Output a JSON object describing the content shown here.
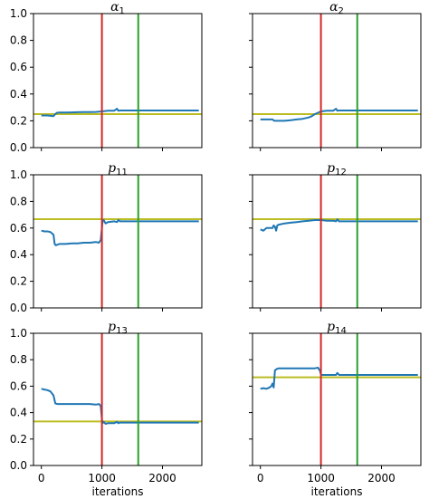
{
  "chart_data": [
    {
      "type": "line",
      "title": "α",
      "title_sub": "1",
      "xlabel": "",
      "ylim": [
        0.0,
        1.0
      ],
      "xlim": [
        -130,
        2650
      ],
      "yticks": [
        "0.0",
        "0.2",
        "0.4",
        "0.6",
        "0.8",
        "1.0"
      ],
      "xticks": [
        "0",
        "1000",
        "2000"
      ],
      "vlines": [
        {
          "x": 1000,
          "color": "#d62728"
        },
        {
          "x": 1600,
          "color": "#2ca02c"
        }
      ],
      "hlines": [
        {
          "y": 0.25,
          "color": "#bcbd22"
        }
      ],
      "series": [
        {
          "color": "#1f77b4",
          "x": [
            0,
            100,
            200,
            220,
            240,
            260,
            300,
            400,
            500,
            600,
            700,
            800,
            900,
            1000,
            1100,
            1200,
            1250,
            1270,
            1300,
            1400,
            1600,
            1800,
            2000,
            2200,
            2400,
            2600
          ],
          "y": [
            0.24,
            0.24,
            0.235,
            0.245,
            0.255,
            0.26,
            0.262,
            0.262,
            0.263,
            0.264,
            0.265,
            0.265,
            0.266,
            0.27,
            0.275,
            0.275,
            0.29,
            0.275,
            0.277,
            0.277,
            0.277,
            0.277,
            0.277,
            0.277,
            0.277,
            0.277
          ]
        }
      ]
    },
    {
      "type": "line",
      "title": "α",
      "title_sub": "2",
      "xlabel": "",
      "ylim": [
        0.0,
        1.0
      ],
      "xlim": [
        -130,
        2650
      ],
      "yticks": [
        "0.0",
        "0.2",
        "0.4",
        "0.6",
        "0.8",
        "1.0"
      ],
      "xticks": [
        "0",
        "1000",
        "2000"
      ],
      "vlines": [
        {
          "x": 1000,
          "color": "#d62728"
        },
        {
          "x": 1600,
          "color": "#2ca02c"
        }
      ],
      "hlines": [
        {
          "y": 0.25,
          "color": "#bcbd22"
        }
      ],
      "series": [
        {
          "color": "#1f77b4",
          "x": [
            0,
            100,
            200,
            230,
            260,
            300,
            400,
            500,
            600,
            700,
            800,
            850,
            900,
            950,
            1000,
            1100,
            1200,
            1250,
            1270,
            1300,
            1400,
            1600,
            1800,
            2000,
            2200,
            2400,
            2600
          ],
          "y": [
            0.21,
            0.21,
            0.21,
            0.2,
            0.2,
            0.2,
            0.2,
            0.205,
            0.21,
            0.215,
            0.225,
            0.235,
            0.25,
            0.26,
            0.27,
            0.275,
            0.275,
            0.29,
            0.275,
            0.277,
            0.277,
            0.277,
            0.277,
            0.277,
            0.277,
            0.277,
            0.277
          ]
        }
      ]
    },
    {
      "type": "line",
      "title": "p",
      "title_sub": "11",
      "xlabel": "",
      "ylim": [
        0.0,
        1.0
      ],
      "xlim": [
        -130,
        2650
      ],
      "yticks": [
        "0.0",
        "0.2",
        "0.4",
        "0.6",
        "0.8",
        "1.0"
      ],
      "xticks": [
        "0",
        "1000",
        "2000"
      ],
      "vlines": [
        {
          "x": 1000,
          "color": "#d62728"
        },
        {
          "x": 1600,
          "color": "#2ca02c"
        }
      ],
      "hlines": [
        {
          "y": 0.667,
          "color": "#bcbd22"
        }
      ],
      "series": [
        {
          "color": "#1f77b4",
          "x": [
            0,
            50,
            100,
            150,
            200,
            220,
            240,
            260,
            300,
            400,
            500,
            600,
            700,
            800,
            900,
            950,
            980,
            1000,
            1010,
            1030,
            1060,
            1100,
            1200,
            1250,
            1270,
            1300,
            1400,
            1600,
            1800,
            2000,
            2200,
            2400,
            2600
          ],
          "y": [
            0.58,
            0.575,
            0.575,
            0.57,
            0.55,
            0.48,
            0.47,
            0.475,
            0.48,
            0.48,
            0.485,
            0.485,
            0.49,
            0.49,
            0.495,
            0.49,
            0.51,
            0.6,
            0.65,
            0.66,
            0.635,
            0.645,
            0.65,
            0.645,
            0.66,
            0.65,
            0.65,
            0.65,
            0.65,
            0.65,
            0.65,
            0.65,
            0.65
          ]
        }
      ]
    },
    {
      "type": "line",
      "title": "p",
      "title_sub": "12",
      "xlabel": "",
      "ylim": [
        0.0,
        1.0
      ],
      "xlim": [
        -130,
        2650
      ],
      "yticks": [
        "0.0",
        "0.2",
        "0.4",
        "0.6",
        "0.8",
        "1.0"
      ],
      "xticks": [
        "0",
        "1000",
        "2000"
      ],
      "vlines": [
        {
          "x": 1000,
          "color": "#d62728"
        },
        {
          "x": 1600,
          "color": "#2ca02c"
        }
      ],
      "hlines": [
        {
          "y": 0.667,
          "color": "#bcbd22"
        }
      ],
      "series": [
        {
          "color": "#1f77b4",
          "x": [
            0,
            50,
            100,
            150,
            200,
            220,
            240,
            260,
            280,
            300,
            400,
            500,
            600,
            700,
            800,
            900,
            1000,
            1100,
            1200,
            1250,
            1270,
            1300,
            1400,
            1600,
            1800,
            2000,
            2200,
            2400,
            2600
          ],
          "y": [
            0.59,
            0.58,
            0.6,
            0.6,
            0.6,
            0.62,
            0.61,
            0.58,
            0.62,
            0.625,
            0.635,
            0.64,
            0.645,
            0.65,
            0.655,
            0.66,
            0.66,
            0.655,
            0.655,
            0.65,
            0.665,
            0.65,
            0.65,
            0.65,
            0.65,
            0.65,
            0.65,
            0.65,
            0.65
          ]
        }
      ]
    },
    {
      "type": "line",
      "title": "p",
      "title_sub": "13",
      "xlabel": "iterations",
      "ylim": [
        0.0,
        1.0
      ],
      "xlim": [
        -130,
        2650
      ],
      "yticks": [
        "0.0",
        "0.2",
        "0.4",
        "0.6",
        "0.8",
        "1.0"
      ],
      "xticks": [
        "0",
        "1000",
        "2000"
      ],
      "vlines": [
        {
          "x": 1000,
          "color": "#d62728"
        },
        {
          "x": 1600,
          "color": "#2ca02c"
        }
      ],
      "hlines": [
        {
          "y": 0.333,
          "color": "#bcbd22"
        }
      ],
      "series": [
        {
          "color": "#1f77b4",
          "x": [
            0,
            50,
            100,
            150,
            200,
            230,
            260,
            300,
            400,
            500,
            600,
            700,
            800,
            900,
            950,
            980,
            1000,
            1010,
            1030,
            1060,
            1100,
            1200,
            1250,
            1270,
            1300,
            1400,
            1600,
            1800,
            2000,
            2200,
            2400,
            2600
          ],
          "y": [
            0.58,
            0.575,
            0.57,
            0.56,
            0.53,
            0.47,
            0.465,
            0.465,
            0.465,
            0.465,
            0.465,
            0.465,
            0.465,
            0.46,
            0.465,
            0.45,
            0.35,
            0.32,
            0.33,
            0.315,
            0.32,
            0.32,
            0.33,
            0.32,
            0.325,
            0.325,
            0.325,
            0.325,
            0.325,
            0.325,
            0.325,
            0.325
          ]
        }
      ]
    },
    {
      "type": "line",
      "title": "p",
      "title_sub": "14",
      "xlabel": "iterations",
      "ylim": [
        0.0,
        1.0
      ],
      "xlim": [
        -130,
        2650
      ],
      "yticks": [
        "0.0",
        "0.2",
        "0.4",
        "0.6",
        "0.8",
        "1.0"
      ],
      "xticks": [
        "0",
        "1000",
        "2000"
      ],
      "vlines": [
        {
          "x": 1000,
          "color": "#d62728"
        },
        {
          "x": 1600,
          "color": "#2ca02c"
        }
      ],
      "hlines": [
        {
          "y": 0.667,
          "color": "#bcbd22"
        }
      ],
      "series": [
        {
          "color": "#1f77b4",
          "x": [
            0,
            50,
            100,
            150,
            180,
            200,
            220,
            240,
            270,
            300,
            400,
            500,
            600,
            700,
            800,
            900,
            950,
            980,
            1000,
            1030,
            1100,
            1200,
            1250,
            1270,
            1300,
            1400,
            1600,
            1800,
            2000,
            2200,
            2400,
            2600
          ],
          "y": [
            0.58,
            0.585,
            0.58,
            0.59,
            0.6,
            0.62,
            0.59,
            0.72,
            0.73,
            0.735,
            0.735,
            0.735,
            0.735,
            0.735,
            0.735,
            0.735,
            0.74,
            0.72,
            0.69,
            0.685,
            0.685,
            0.685,
            0.685,
            0.7,
            0.685,
            0.685,
            0.685,
            0.685,
            0.685,
            0.685,
            0.685,
            0.685
          ]
        }
      ]
    }
  ]
}
